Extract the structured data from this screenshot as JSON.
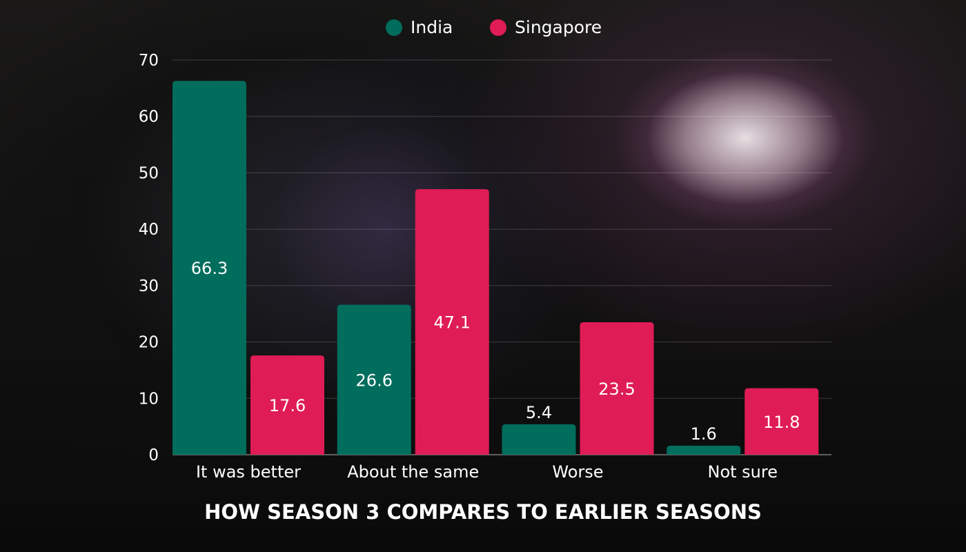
{
  "chart_data": {
    "type": "bar",
    "title": "HOW SEASON 3 COMPARES TO EARLIER SEASONS",
    "xlabel": "",
    "ylabel": "",
    "categories": [
      "It was better",
      "About the same",
      "Worse",
      "Not sure"
    ],
    "series": [
      {
        "name": "India",
        "color": "#016d5c",
        "values": [
          66.3,
          26.6,
          5.4,
          1.6
        ]
      },
      {
        "name": "Singapore",
        "color": "#df1c55",
        "values": [
          17.6,
          47.1,
          23.5,
          11.8
        ]
      }
    ],
    "ylim": [
      0,
      70
    ],
    "yticks": [
      0,
      10,
      20,
      30,
      40,
      50,
      60,
      70
    ],
    "grid": true,
    "legend": "top-center"
  }
}
